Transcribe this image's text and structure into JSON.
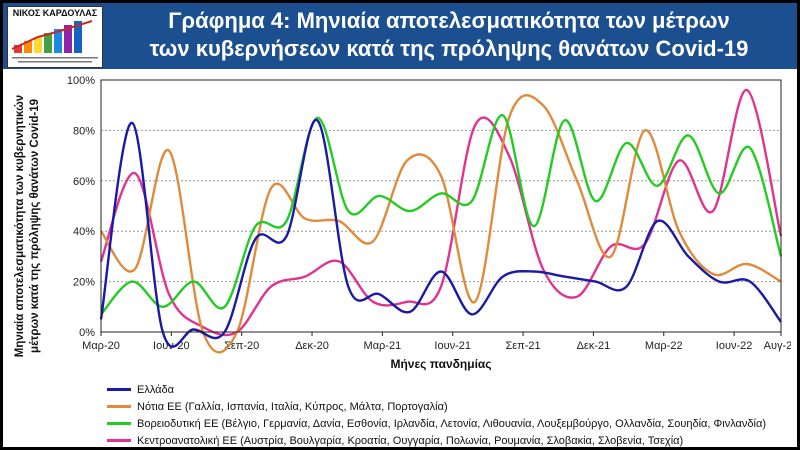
{
  "header": {
    "logo_name": "ΝΙΚΟΣ ΚΑΡΔΟΥΛΑΣ",
    "title_line1": "Γράφημα 4: Μηνιαία αποτελεσματικότητα των μέτρων",
    "title_line2": "των κυβερνήσεων κατά της πρόληψης θανάτων Covid-19",
    "background": "#1b4f8f"
  },
  "chart_data": {
    "type": "line",
    "xlabel": "Μήνες πανδημίας",
    "ylabel_line1": "Μηνιαία αποτελεσματικότητα των κυβερνητικών",
    "ylabel_line2": "μέτρων κατά της πρόληψης θανάτων Covid-19",
    "x_tick_labels": [
      "Μαρ-20",
      "Ιουν-20",
      "Σεπ-20",
      "Δεκ-20",
      "Μαρ-21",
      "Ιουν-21",
      "Σεπ-21",
      "Δεκ-21",
      "Μαρ-22",
      "Ιουν-22",
      "Αυγ-22"
    ],
    "x_tick_positions": [
      0,
      3,
      6,
      9,
      12,
      15,
      18,
      21,
      24,
      27,
      29
    ],
    "y_tick_labels": [
      "0%",
      "20%",
      "40%",
      "60%",
      "80%",
      "100%"
    ],
    "y_ticks": [
      0,
      20,
      40,
      60,
      80,
      100
    ],
    "ylim": [
      0,
      100
    ],
    "x_range": [
      0,
      29
    ],
    "grid": "horizontal",
    "legend_position": "bottom",
    "series": [
      {
        "name": "Ελλάδα",
        "color": "#1a1aa6",
        "values": [
          5,
          83,
          0,
          1,
          0,
          37,
          38,
          84,
          18,
          15,
          8,
          24,
          7,
          22,
          24,
          22,
          20,
          18,
          44,
          30,
          20,
          20,
          4
        ]
      },
      {
        "name": "Νότια ΕΕ (Γαλλία, Ισπανία, Ιταλία, Κύπρος, Μάλτα, Πορτογαλία)",
        "color": "#e08a3c",
        "values": [
          40,
          25,
          72,
          0,
          0,
          57,
          45,
          44,
          36,
          68,
          62,
          12,
          85,
          90,
          60,
          30,
          80,
          40,
          23,
          27,
          20
        ]
      },
      {
        "name": "Βορειοδυτική ΕΕ (Βέλγιο, Γερμανία, Δανία, Εσθονία, Ιρλανδία, Λετονία, Λιθουανία, Λουξεμβούργο, Ολλανδία, Σουηδία, Φινλανδία)",
        "color": "#22cc22",
        "values": [
          7,
          20,
          10,
          20,
          10,
          42,
          44,
          85,
          48,
          54,
          48,
          55,
          52,
          86,
          42,
          84,
          52,
          75,
          58,
          78,
          55,
          73,
          30
        ]
      },
      {
        "name": "Κεντροανατολική ΕΕ (Αυστρία, Βουλγαρία, Κροατία, Ουγγαρία, Πολωνία, Ρουμανία, Σλοβακία, Σλοβενία, Τσεχία)",
        "color": "#e0338f",
        "values": [
          28,
          63,
          15,
          2,
          0,
          18,
          22,
          28,
          12,
          12,
          18,
          82,
          70,
          25,
          14,
          34,
          35,
          68,
          48,
          96,
          38
        ]
      }
    ]
  }
}
